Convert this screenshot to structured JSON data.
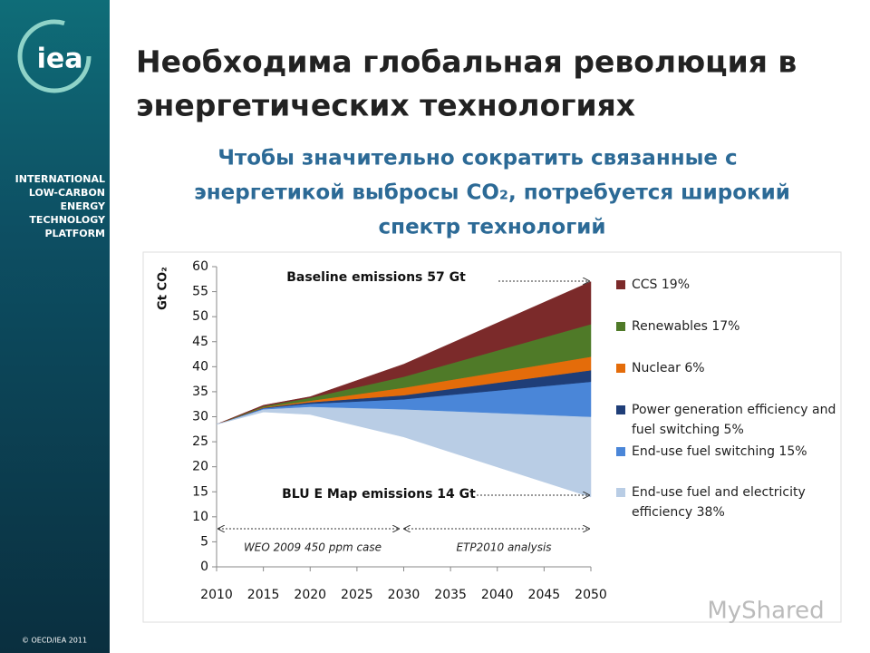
{
  "sidebar": {
    "logo": "iea",
    "platform": [
      "INTERNATIONAL",
      "LOW-CARBON",
      "ENERGY",
      "TECHNOLOGY",
      "PLATFORM"
    ],
    "copyright": "© OECD/IEA 2011"
  },
  "title": [
    "Необходима глобальная революция в",
    "энергетических технологиях"
  ],
  "subtitle": [
    "Чтобы значительно сократить связанные с",
    "энергетикой выбросы CO₂, потребуется широкий",
    "спектр технологий"
  ],
  "watermark": "MyShared",
  "chart_data": {
    "type": "stacked-area",
    "y_label": "Gt CO₂",
    "x": [
      2010,
      2015,
      2020,
      2030,
      2050
    ],
    "xlim": [
      2010,
      2050
    ],
    "xticks": [
      2010,
      2015,
      2020,
      2025,
      2030,
      2035,
      2040,
      2045,
      2050
    ],
    "ylim": [
      0,
      60
    ],
    "yticks": [
      0,
      5,
      10,
      15,
      20,
      25,
      30,
      35,
      40,
      45,
      50,
      55,
      60
    ],
    "base_values": [
      28.5,
      31,
      30.5,
      26,
      14
    ],
    "series": [
      {
        "name": "End-use fuel and electricity efficiency 38%",
        "color": "#b9cde5",
        "values": [
          0,
          0.5,
          1.5,
          5.5,
          16
        ]
      },
      {
        "name": "End-use fuel switching 15%",
        "color": "#4a86d8",
        "values": [
          0,
          0.2,
          0.6,
          2,
          7
        ]
      },
      {
        "name": "Power generation efficiency and fuel switching 5%",
        "color": "#1f3e78",
        "values": [
          0,
          0.1,
          0.3,
          0.8,
          2.3
        ]
      },
      {
        "name": "Nuclear 6%",
        "color": "#e46c0a",
        "values": [
          0,
          0.1,
          0.3,
          1.5,
          2.7
        ]
      },
      {
        "name": "Renewables 17%",
        "color": "#4f7a28",
        "values": [
          0,
          0.2,
          0.6,
          2.2,
          6.5
        ]
      },
      {
        "name": "CCS 19%",
        "color": "#7b2a2a",
        "values": [
          0,
          0.2,
          0.2,
          2.5,
          8.5
        ]
      }
    ],
    "annotations": [
      "Baseline emissions 57 Gt",
      "BLU E Map emissions 14 Gt",
      "WEO 2009 450 ppm case",
      "ETP2010 analysis"
    ]
  }
}
